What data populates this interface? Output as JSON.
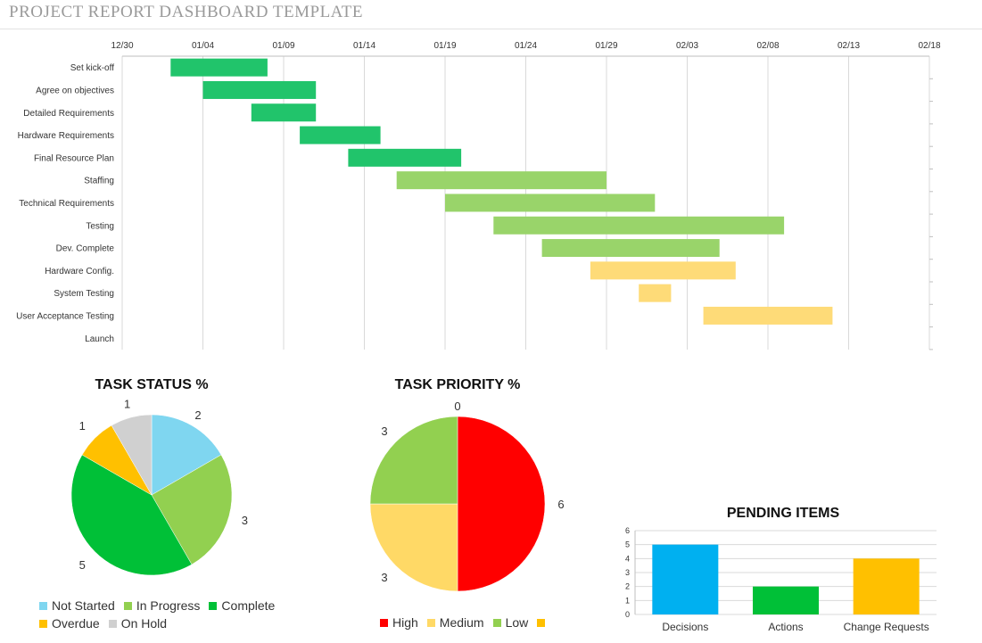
{
  "header": {
    "title": "PROJECT REPORT DASHBOARD TEMPLATE"
  },
  "chart_data": [
    {
      "type": "bar",
      "subtype": "gantt",
      "x_axis": {
        "ticks": [
          "12/30",
          "01/04",
          "01/09",
          "01/14",
          "01/19",
          "01/24",
          "01/29",
          "02/03",
          "02/08",
          "02/13",
          "02/18"
        ],
        "range": [
          "12/30",
          "02/18"
        ],
        "grid": true
      },
      "colors": {
        "dark": "#21c46b",
        "mid": "#99d46a",
        "light": "#fedb78"
      },
      "tasks": [
        {
          "name": "Set kick-off",
          "start": "01/02",
          "end": "01/08",
          "color": "dark"
        },
        {
          "name": "Agree on objectives",
          "start": "01/04",
          "end": "01/11",
          "color": "dark"
        },
        {
          "name": "Detailed Requirements",
          "start": "01/07",
          "end": "01/11",
          "color": "dark"
        },
        {
          "name": "Hardware Requirements",
          "start": "01/10",
          "end": "01/15",
          "color": "dark"
        },
        {
          "name": "Final Resource Plan",
          "start": "01/13",
          "end": "01/20",
          "color": "dark"
        },
        {
          "name": "Staffing",
          "start": "01/16",
          "end": "01/29",
          "color": "mid"
        },
        {
          "name": "Technical Requirements",
          "start": "01/19",
          "end": "02/01",
          "color": "mid"
        },
        {
          "name": "Testing",
          "start": "01/22",
          "end": "02/09",
          "color": "mid"
        },
        {
          "name": "Dev. Complete",
          "start": "01/25",
          "end": "02/05",
          "color": "mid"
        },
        {
          "name": "Hardware Config.",
          "start": "01/28",
          "end": "02/06",
          "color": "light"
        },
        {
          "name": "System Testing",
          "start": "01/31",
          "end": "02/02",
          "color": "light"
        },
        {
          "name": "User Acceptance Testing",
          "start": "02/04",
          "end": "02/12",
          "color": "light"
        },
        {
          "name": "Launch",
          "start": null,
          "end": null,
          "color": "light"
        }
      ]
    },
    {
      "type": "pie",
      "title": "TASK STATUS %",
      "slices": [
        {
          "label": "Not Started",
          "value": 2,
          "color": "#7fd6f0"
        },
        {
          "label": "In Progress",
          "value": 3,
          "color": "#92d050"
        },
        {
          "label": "Complete",
          "value": 5,
          "color": "#00c037"
        },
        {
          "label": "Overdue",
          "value": 1,
          "color": "#ffc000"
        },
        {
          "label": "On Hold",
          "value": 1,
          "color": "#d0d0d0"
        }
      ],
      "legend_placement": "bottom"
    },
    {
      "type": "pie",
      "title": "TASK PRIORITY %",
      "slices": [
        {
          "label": "",
          "value": 0,
          "color": "#ffc000"
        },
        {
          "label": "High",
          "value": 6,
          "color": "#ff0000"
        },
        {
          "label": "Medium",
          "value": 3,
          "color": "#ffd966"
        },
        {
          "label": "Low",
          "value": 3,
          "color": "#92d050"
        }
      ],
      "legend_placement": "bottom"
    },
    {
      "type": "bar",
      "title": "PENDING ITEMS",
      "categories": [
        "Decisions",
        "Actions",
        "Change Requests"
      ],
      "values": [
        5,
        2,
        4
      ],
      "colors": [
        "#00b0f0",
        "#00c037",
        "#ffc000"
      ],
      "ylim": [
        0,
        6
      ],
      "yticks": [
        "0",
        "1",
        "2",
        "3",
        "4",
        "5",
        "6"
      ],
      "grid": true
    }
  ]
}
